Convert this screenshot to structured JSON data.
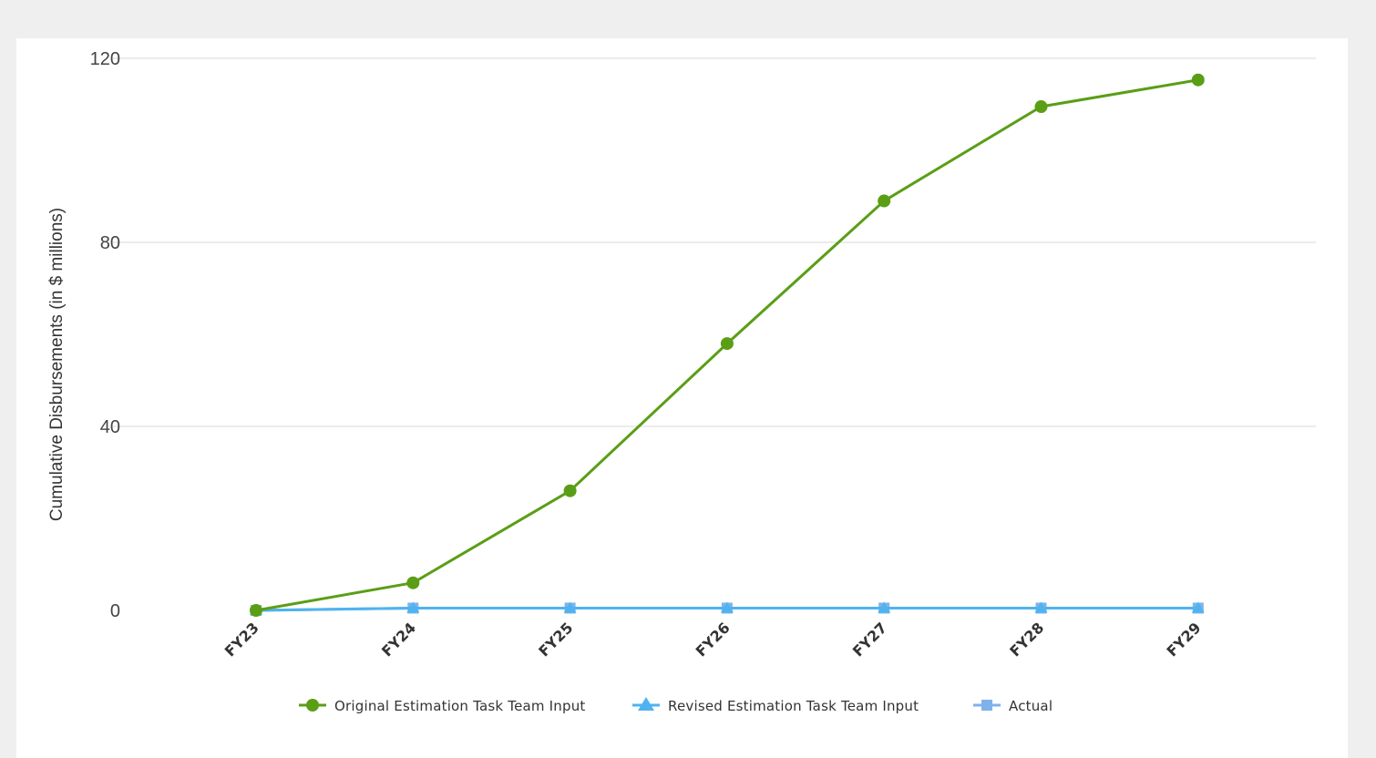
{
  "chart_data": {
    "type": "line",
    "categories": [
      "FY23",
      "FY24",
      "FY25",
      "FY26",
      "FY27",
      "FY28",
      "FY29"
    ],
    "ylabel": "Cumulative Disbursements (in $ millions)",
    "xlabel": "",
    "ylim": [
      0,
      120
    ],
    "yticks": [
      0,
      40,
      80,
      120
    ],
    "grid": true,
    "legend_position": "bottom",
    "series": [
      {
        "name": "Original Estimation Task Team Input",
        "color": "#5a9e16",
        "marker": "circle",
        "values": [
          0,
          6,
          26,
          58,
          89,
          109.5,
          115.3
        ]
      },
      {
        "name": "Revised Estimation Task Team Input",
        "color": "#4fb3ef",
        "marker": "triangle",
        "values": [
          0,
          0.5,
          0.5,
          0.5,
          0.5,
          0.5,
          0.5
        ]
      },
      {
        "name": "Actual",
        "color": "#7fb2ea",
        "marker": "square",
        "values": [
          0,
          0.5,
          0.5,
          0.5,
          0.5,
          0.5,
          0.5
        ]
      }
    ]
  }
}
